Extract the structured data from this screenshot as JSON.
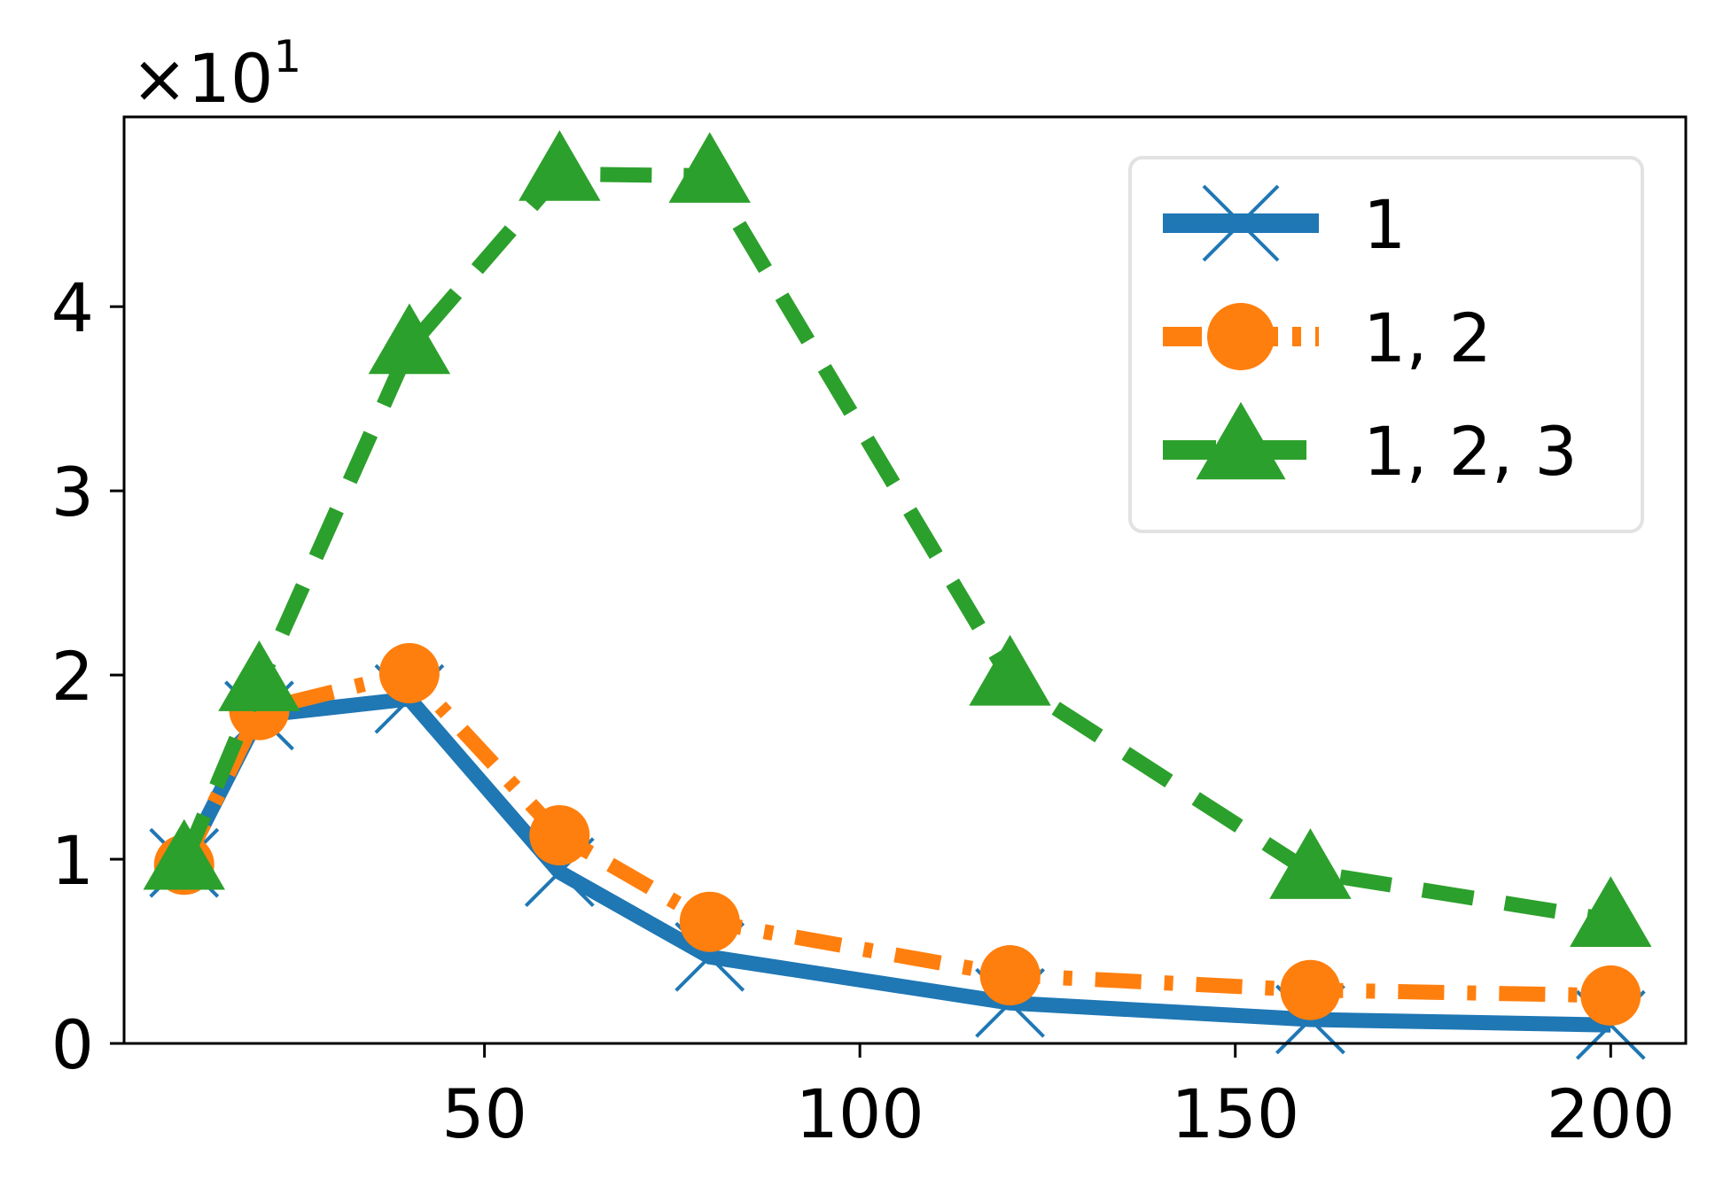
{
  "chart_data": {
    "type": "line",
    "title": "",
    "xlabel": "",
    "ylabel": "",
    "y_multiplier_label": {
      "base": "×10",
      "exponent": "1"
    },
    "xlim": [
      2,
      210
    ],
    "ylim": [
      0,
      5.03
    ],
    "x_ticks": [
      50,
      100,
      150,
      200
    ],
    "y_ticks": [
      0,
      1,
      2,
      3,
      4
    ],
    "x_tick_labels": [
      "50",
      "100",
      "150",
      "200"
    ],
    "y_tick_labels": [
      "0",
      "1",
      "2",
      "3",
      "4"
    ],
    "grid": false,
    "legend_position": "top-right",
    "x": [
      10,
      20,
      40,
      60,
      80,
      120,
      160,
      200
    ],
    "series": [
      {
        "name": "1",
        "color": "#1f77b4",
        "marker": "x",
        "line_style": "solid",
        "values": [
          0.98,
          1.78,
          1.87,
          0.93,
          0.47,
          0.22,
          0.13,
          0.1
        ]
      },
      {
        "name": "1, 2",
        "color": "#ff7f0e",
        "marker": "circle",
        "line_style": "dashdot",
        "values": [
          0.97,
          1.81,
          2.01,
          1.13,
          0.66,
          0.37,
          0.29,
          0.26
        ]
      },
      {
        "name": "1, 2, 3",
        "color": "#2ca02c",
        "marker": "triangle",
        "line_style": "dashed",
        "values": [
          0.98,
          1.95,
          3.78,
          4.72,
          4.71,
          1.98,
          0.93,
          0.67
        ]
      }
    ]
  }
}
